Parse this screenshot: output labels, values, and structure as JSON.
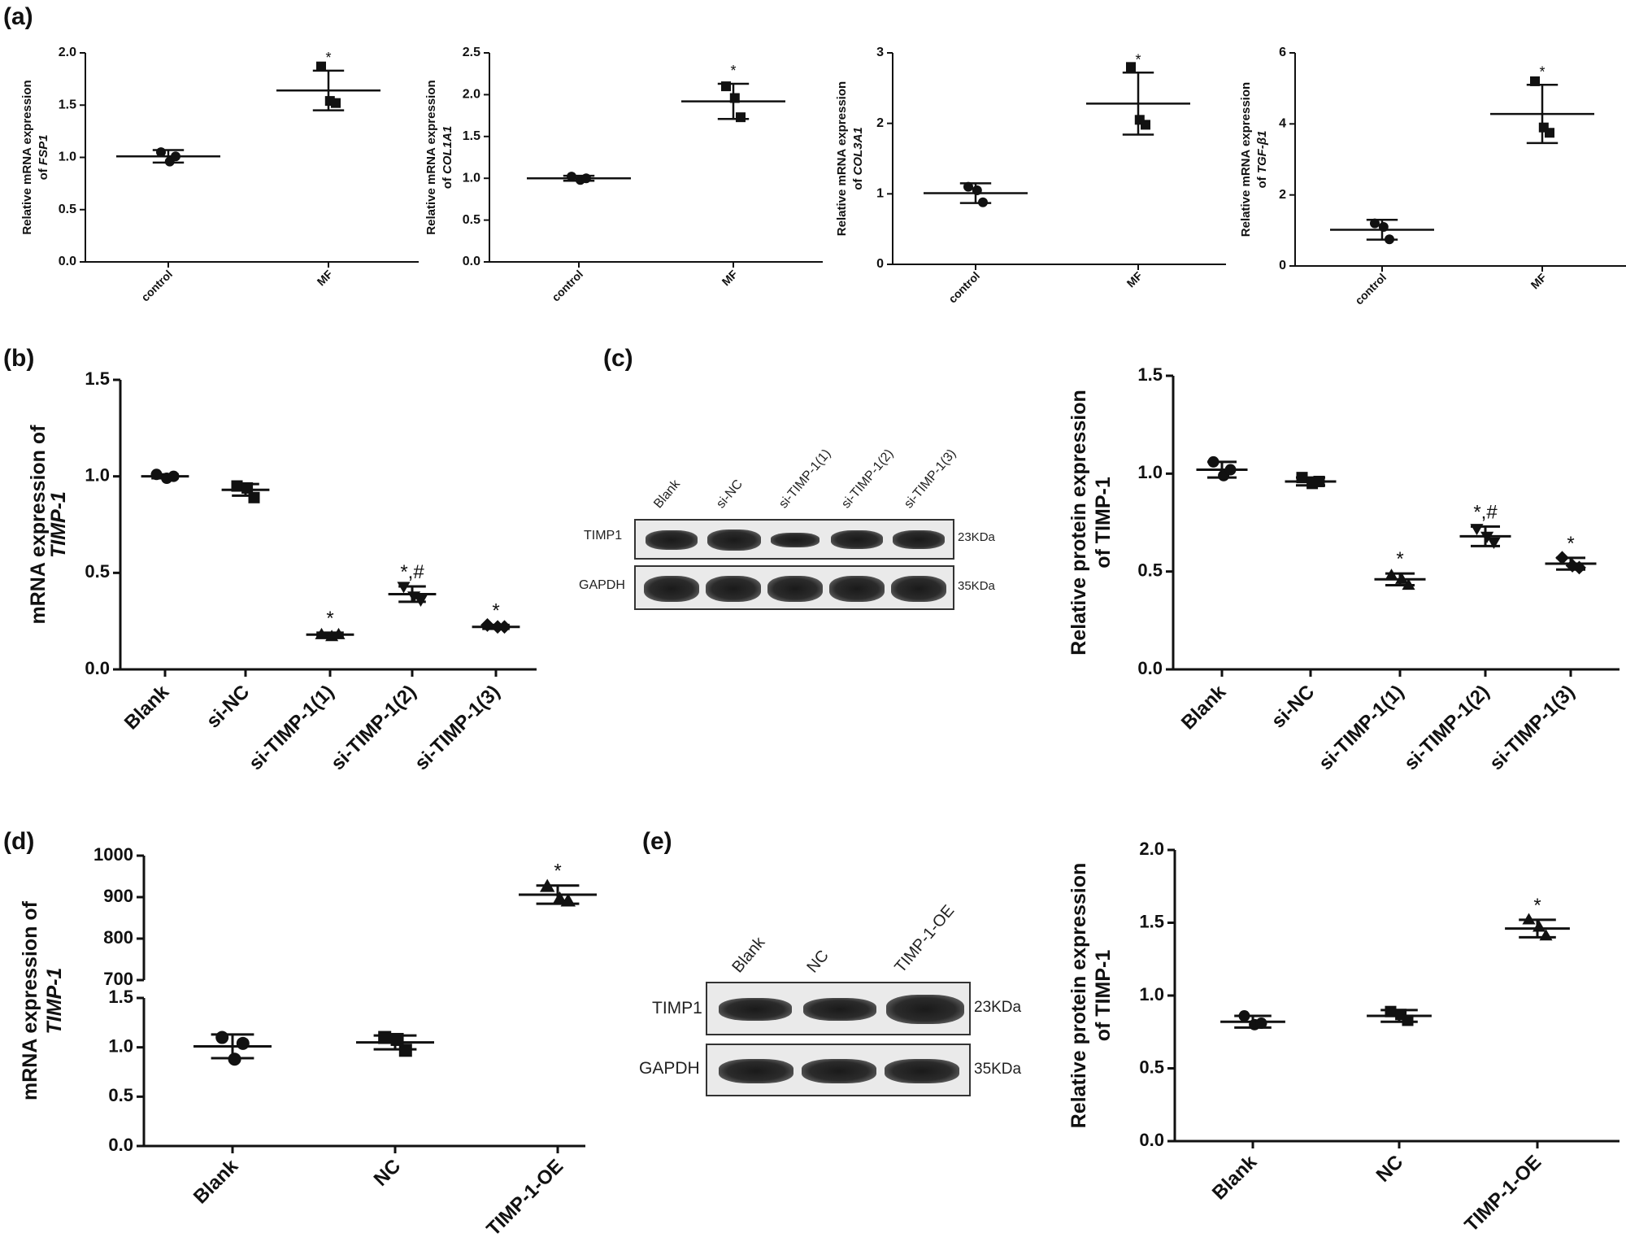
{
  "panel_labels": {
    "a": "(a)",
    "b": "(b)",
    "c": "(c)",
    "d": "(d)",
    "e": "(e)"
  },
  "chart_data": [
    {
      "id": "a1",
      "type": "scatter",
      "categories": [
        "control",
        "MF"
      ],
      "ylabel_line1": "Relative mRNA expression",
      "ylabel_prefix": "of ",
      "ylabel_gene": "FSP1",
      "ylim": [
        0,
        2.0
      ],
      "yticks": [
        0.0,
        0.5,
        1.0,
        1.5,
        2.0
      ],
      "ytick_labels": [
        "0.0",
        "0.5",
        "1.0",
        "1.5",
        "2.0"
      ],
      "series": [
        {
          "marker": "circle",
          "points": [
            1.05,
            0.96,
            1.01
          ],
          "mean": 1.01,
          "sd": 0.06,
          "annotation": ""
        },
        {
          "marker": "square",
          "points": [
            1.87,
            1.54,
            1.52
          ],
          "mean": 1.64,
          "sd": 0.19,
          "annotation": "*"
        }
      ]
    },
    {
      "id": "a2",
      "type": "scatter",
      "categories": [
        "control",
        "MF"
      ],
      "ylabel_line1": "Relative mRNA expression",
      "ylabel_prefix": "of ",
      "ylabel_gene": "COL1A1",
      "ylim": [
        0,
        2.5
      ],
      "yticks": [
        0.0,
        0.5,
        1.0,
        1.5,
        2.0,
        2.5
      ],
      "ytick_labels": [
        "0.0",
        "0.5",
        "1.0",
        "1.5",
        "2.0",
        "2.5"
      ],
      "series": [
        {
          "marker": "circle",
          "points": [
            1.02,
            0.98,
            1.0
          ],
          "mean": 1.0,
          "sd": 0.03,
          "annotation": ""
        },
        {
          "marker": "square",
          "points": [
            2.1,
            1.96,
            1.73
          ],
          "mean": 1.92,
          "sd": 0.21,
          "annotation": "*"
        }
      ]
    },
    {
      "id": "a3",
      "type": "scatter",
      "categories": [
        "control",
        "MF"
      ],
      "ylabel_line1": "Relative mRNA expression",
      "ylabel_prefix": "of ",
      "ylabel_gene": "COL3A1",
      "ylim": [
        0,
        3
      ],
      "yticks": [
        0,
        1,
        2,
        3
      ],
      "ytick_labels": [
        "0",
        "1",
        "2",
        "3"
      ],
      "series": [
        {
          "marker": "circle",
          "points": [
            1.1,
            1.05,
            0.88
          ],
          "mean": 1.01,
          "sd": 0.14,
          "annotation": ""
        },
        {
          "marker": "square",
          "points": [
            2.8,
            2.05,
            1.98
          ],
          "mean": 2.28,
          "sd": 0.44,
          "annotation": "*"
        }
      ]
    },
    {
      "id": "a4",
      "type": "scatter",
      "categories": [
        "control",
        "MF"
      ],
      "ylabel_line1": "Relative mRNA expression",
      "ylabel_prefix": "of ",
      "ylabel_gene": "TGF-β1",
      "ylim": [
        0,
        6
      ],
      "yticks": [
        0,
        2,
        4,
        6
      ],
      "ytick_labels": [
        "0",
        "2",
        "4",
        "6"
      ],
      "series": [
        {
          "marker": "circle",
          "points": [
            1.2,
            1.1,
            0.75
          ],
          "mean": 1.02,
          "sd": 0.28,
          "annotation": ""
        },
        {
          "marker": "square",
          "points": [
            5.2,
            3.9,
            3.75
          ],
          "mean": 4.28,
          "sd": 0.82,
          "annotation": "*"
        }
      ]
    },
    {
      "id": "b",
      "type": "scatter",
      "categories": [
        "Blank",
        "si-NC",
        "si-TIMP-1(1)",
        "si-TIMP-1(2)",
        "si-TIMP-1(3)"
      ],
      "ylabel_line1": "mRNA expression of",
      "ylabel_prefix": "",
      "ylabel_gene": "TIMP-1",
      "ylim": [
        0,
        1.5
      ],
      "yticks": [
        0.0,
        0.5,
        1.0,
        1.5
      ],
      "ytick_labels": [
        "0.0",
        "0.5",
        "1.0",
        "1.5"
      ],
      "series": [
        {
          "marker": "circle",
          "points": [
            1.01,
            0.99,
            1.0
          ],
          "mean": 1.0,
          "sd": 0.01,
          "annotation": ""
        },
        {
          "marker": "square",
          "points": [
            0.95,
            0.94,
            0.89
          ],
          "mean": 0.93,
          "sd": 0.03,
          "annotation": ""
        },
        {
          "marker": "triangle-up",
          "points": [
            0.18,
            0.17,
            0.18
          ],
          "mean": 0.18,
          "sd": 0.01,
          "annotation": "*"
        },
        {
          "marker": "triangle-down",
          "points": [
            0.43,
            0.38,
            0.36
          ],
          "mean": 0.39,
          "sd": 0.04,
          "annotation": "*,#"
        },
        {
          "marker": "diamond",
          "points": [
            0.23,
            0.22,
            0.22
          ],
          "mean": 0.22,
          "sd": 0.01,
          "annotation": "*"
        }
      ]
    },
    {
      "id": "c",
      "type": "scatter",
      "categories": [
        "Blank",
        "si-NC",
        "si-TIMP-1(1)",
        "si-TIMP-1(2)",
        "si-TIMP-1(3)"
      ],
      "ylabel_line1": "Relative protein expression",
      "ylabel_prefix": "",
      "ylabel_gene": "",
      "ylabel_line2_plain": "of TIMP-1",
      "ylim": [
        0,
        1.5
      ],
      "yticks": [
        0.0,
        0.5,
        1.0,
        1.5
      ],
      "ytick_labels": [
        "0.0",
        "0.5",
        "1.0",
        "1.5"
      ],
      "series": [
        {
          "marker": "circle",
          "points": [
            1.06,
            0.99,
            1.02
          ],
          "mean": 1.02,
          "sd": 0.04,
          "annotation": ""
        },
        {
          "marker": "square",
          "points": [
            0.98,
            0.95,
            0.96
          ],
          "mean": 0.96,
          "sd": 0.02,
          "annotation": ""
        },
        {
          "marker": "triangle-up",
          "points": [
            0.48,
            0.46,
            0.43
          ],
          "mean": 0.46,
          "sd": 0.03,
          "annotation": "*"
        },
        {
          "marker": "triangle-down",
          "points": [
            0.72,
            0.68,
            0.65
          ],
          "mean": 0.68,
          "sd": 0.05,
          "annotation": "*,#"
        },
        {
          "marker": "diamond",
          "points": [
            0.57,
            0.53,
            0.52
          ],
          "mean": 0.54,
          "sd": 0.03,
          "annotation": "*"
        }
      ]
    },
    {
      "id": "d",
      "type": "scatter",
      "broken_axis": true,
      "categories": [
        "Blank",
        "NC",
        "TIMP-1-OE"
      ],
      "ylabel_line1": "mRNA expression of",
      "ylabel_prefix": "",
      "ylabel_gene": "TIMP-1",
      "ylim_lower": [
        0,
        1.5
      ],
      "yticks_lower": [
        0.0,
        0.5,
        1.0,
        1.5
      ],
      "ytick_labels_lower": [
        "0.0",
        "0.5",
        "1.0",
        "1.5"
      ],
      "ylim_upper": [
        700,
        1000
      ],
      "yticks_upper": [
        700,
        800,
        900,
        1000
      ],
      "ytick_labels_upper": [
        "700",
        "800",
        "900",
        "1000"
      ],
      "series": [
        {
          "marker": "circle",
          "points": [
            1.1,
            0.88,
            1.04
          ],
          "mean": 1.01,
          "sd": 0.12,
          "annotation": ""
        },
        {
          "marker": "square",
          "points": [
            1.1,
            1.08,
            0.97
          ],
          "mean": 1.05,
          "sd": 0.07,
          "annotation": ""
        },
        {
          "marker": "triangle-up",
          "points": [
            925,
            895,
            890
          ],
          "mean": 906,
          "sd": 22,
          "annotation": "*"
        }
      ]
    },
    {
      "id": "e",
      "type": "scatter",
      "categories": [
        "Blank",
        "NC",
        "TIMP-1-OE"
      ],
      "ylabel_line1": "Relative protein expression",
      "ylabel_prefix": "",
      "ylabel_gene": "",
      "ylabel_line2_plain": "of TIMP-1",
      "ylim": [
        0,
        2.0
      ],
      "yticks": [
        0.0,
        0.5,
        1.0,
        1.5,
        2.0
      ],
      "ytick_labels": [
        "0.0",
        "0.5",
        "1.0",
        "1.5",
        "2.0"
      ],
      "series": [
        {
          "marker": "circle",
          "points": [
            0.86,
            0.8,
            0.81
          ],
          "mean": 0.82,
          "sd": 0.04,
          "annotation": ""
        },
        {
          "marker": "square",
          "points": [
            0.89,
            0.87,
            0.83
          ],
          "mean": 0.86,
          "sd": 0.04,
          "annotation": ""
        },
        {
          "marker": "triangle-up",
          "points": [
            1.52,
            1.47,
            1.41
          ],
          "mean": 1.46,
          "sd": 0.06,
          "annotation": "*"
        }
      ]
    }
  ],
  "blots": {
    "c": {
      "columns": [
        "Blank",
        "si-NC",
        "si-TIMP-1(1)",
        "si-TIMP-1(2)",
        "si-TIMP-1(3)"
      ],
      "rows": [
        {
          "name": "TIMP1",
          "kda": "23KDa"
        },
        {
          "name": "GAPDH",
          "kda": "35KDa"
        }
      ]
    },
    "e": {
      "columns": [
        "Blank",
        "NC",
        "TIMP-1-OE"
      ],
      "rows": [
        {
          "name": "TIMP1",
          "kda": "23KDa"
        },
        {
          "name": "GAPDH",
          "kda": "35KDa"
        }
      ]
    }
  }
}
